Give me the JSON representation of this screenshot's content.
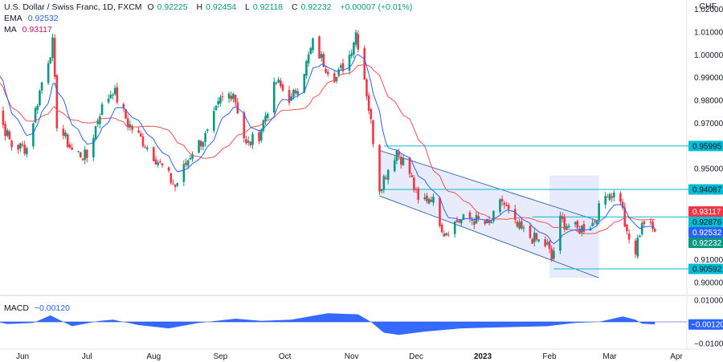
{
  "header": {
    "symbol": "U.S. Dollar / Swiss Franc, 1D, FXCM",
    "open_label": "O",
    "open": "0.92225",
    "high_label": "H",
    "high": "0.92454",
    "low_label": "L",
    "low": "0.92118",
    "close_label": "C",
    "close": "0.92232",
    "change": "+0.00007 (+0.01%)",
    "ema_label": "EMA",
    "ema_value": "0.92532",
    "ma_label": "MA",
    "ma_value": "0.93117",
    "unit": "CHF"
  },
  "macd_panel": {
    "label": "MACD",
    "value": "−0.00120"
  },
  "colors": {
    "up": "#089981",
    "down": "#f23645",
    "ema": "#2962ff",
    "ma": "#ef5350",
    "channel_fill": "#e6e9fb",
    "channel_line": "#3d6fb8",
    "level_line": "#00bcd4",
    "macd": "#2962ff",
    "ema_text": "#2962ff",
    "ma_text": "#c2185b"
  },
  "chart_data": [
    {
      "type": "candlestick",
      "title": "U.S. Dollar / Swiss Franc, 1D, FXCM",
      "y_axis_side": "right",
      "ylim": [
        0.895,
        1.022
      ],
      "y_ticks": [
        {
          "label": "1.02000",
          "value": 1.02
        },
        {
          "label": "1.01000",
          "value": 1.01
        },
        {
          "label": "1.00000",
          "value": 1.0
        },
        {
          "label": "0.99000",
          "value": 0.99
        },
        {
          "label": "0.98000",
          "value": 0.98
        },
        {
          "label": "0.97000",
          "value": 0.97
        },
        {
          "label": "0.95000",
          "value": 0.95
        },
        {
          "label": "0.91000",
          "value": 0.91
        },
        {
          "label": "0.90000",
          "value": 0.9
        }
      ],
      "price_labels": [
        {
          "label": "0.95995",
          "value": 0.95995,
          "bg": "#00bcd4",
          "fg": "#131722",
          "line": true
        },
        {
          "label": "0.94087",
          "value": 0.94087,
          "bg": "#00bcd4",
          "fg": "#131722",
          "line": true
        },
        {
          "label": "0.93117",
          "value": 0.93117,
          "bg": "#f23645",
          "fg": "#ffffff",
          "line": false
        },
        {
          "label": "0.92876",
          "value": 0.92876,
          "bg": "#00bcd4",
          "fg": "#131722",
          "line": true
        },
        {
          "label": "0.92532",
          "value": 0.92532,
          "bg": "#2962ff",
          "fg": "#ffffff",
          "line": false
        },
        {
          "label": "0.92232",
          "value": 0.92232,
          "bg": "#089981",
          "fg": "#ffffff",
          "line": false
        },
        {
          "label": "0.90592",
          "value": 0.90592,
          "bg": "#00bcd4",
          "fg": "#131722",
          "line": true
        }
      ],
      "x_ticks": [
        "Jun",
        "Jul",
        "Aug",
        "Sep",
        "Oct",
        "Nov",
        "Dec",
        "2023",
        "Feb",
        "Mar",
        "Apr"
      ],
      "x_tick_dates": [
        "2022-06-01",
        "2022-07-01",
        "2022-08-01",
        "2022-09-01",
        "2022-10-01",
        "2022-11-01",
        "2022-12-01",
        "2023-01-01",
        "2023-02-01",
        "2023-03-01",
        "2023-04-01"
      ],
      "x_bold": [
        "2023"
      ],
      "first_date": "2022-05-16",
      "last_date": "2023-03-22",
      "close_path": [
        {
          "d": "2022-05-16",
          "v": 1.004
        },
        {
          "d": "2022-05-20",
          "v": 0.976
        },
        {
          "d": "2022-05-27",
          "v": 0.96
        },
        {
          "d": "2022-06-03",
          "v": 0.959
        },
        {
          "d": "2022-06-10",
          "v": 0.988
        },
        {
          "d": "2022-06-15",
          "v": 1.005
        },
        {
          "d": "2022-06-17",
          "v": 0.97
        },
        {
          "d": "2022-06-24",
          "v": 0.958
        },
        {
          "d": "2022-07-01",
          "v": 0.955
        },
        {
          "d": "2022-07-07",
          "v": 0.975
        },
        {
          "d": "2022-07-13",
          "v": 0.985
        },
        {
          "d": "2022-07-20",
          "v": 0.97
        },
        {
          "d": "2022-07-27",
          "v": 0.962
        },
        {
          "d": "2022-08-04",
          "v": 0.952
        },
        {
          "d": "2022-08-11",
          "v": 0.942
        },
        {
          "d": "2022-08-19",
          "v": 0.958
        },
        {
          "d": "2022-08-26",
          "v": 0.965
        },
        {
          "d": "2022-09-01",
          "v": 0.98
        },
        {
          "d": "2022-09-07",
          "v": 0.984
        },
        {
          "d": "2022-09-13",
          "v": 0.96
        },
        {
          "d": "2022-09-19",
          "v": 0.965
        },
        {
          "d": "2022-09-27",
          "v": 0.988
        },
        {
          "d": "2022-10-04",
          "v": 0.98
        },
        {
          "d": "2022-10-11",
          "v": 0.996
        },
        {
          "d": "2022-10-14",
          "v": 1.005
        },
        {
          "d": "2022-10-20",
          "v": 0.995
        },
        {
          "d": "2022-10-25",
          "v": 0.99
        },
        {
          "d": "2022-10-31",
          "v": 1.0
        },
        {
          "d": "2022-11-03",
          "v": 1.01
        },
        {
          "d": "2022-11-07",
          "v": 0.99
        },
        {
          "d": "2022-11-10",
          "v": 0.97
        },
        {
          "d": "2022-11-14",
          "v": 0.942
        },
        {
          "d": "2022-11-18",
          "v": 0.95
        },
        {
          "d": "2022-11-22",
          "v": 0.958
        },
        {
          "d": "2022-11-28",
          "v": 0.948
        },
        {
          "d": "2022-12-02",
          "v": 0.935
        },
        {
          "d": "2022-12-08",
          "v": 0.938
        },
        {
          "d": "2022-12-14",
          "v": 0.922
        },
        {
          "d": "2022-12-20",
          "v": 0.927
        },
        {
          "d": "2022-12-27",
          "v": 0.928
        },
        {
          "d": "2023-01-04",
          "v": 0.925
        },
        {
          "d": "2023-01-10",
          "v": 0.936
        },
        {
          "d": "2023-01-16",
          "v": 0.925
        },
        {
          "d": "2023-01-23",
          "v": 0.92
        },
        {
          "d": "2023-01-31",
          "v": 0.916
        },
        {
          "d": "2023-02-02",
          "v": 0.91
        },
        {
          "d": "2023-02-06",
          "v": 0.927
        },
        {
          "d": "2023-02-14",
          "v": 0.923
        },
        {
          "d": "2023-02-21",
          "v": 0.926
        },
        {
          "d": "2023-02-28",
          "v": 0.94
        },
        {
          "d": "2023-03-06",
          "v": 0.937
        },
        {
          "d": "2023-03-09",
          "v": 0.92
        },
        {
          "d": "2023-03-13",
          "v": 0.913
        },
        {
          "d": "2023-03-16",
          "v": 0.927
        },
        {
          "d": "2023-03-22",
          "v": 0.9223
        }
      ],
      "overlays": [
        {
          "name": "EMA",
          "value": "0.92532",
          "color": "#2962ff"
        },
        {
          "name": "MA",
          "value": "0.93117",
          "color": "#ef5350"
        }
      ],
      "drawings": {
        "descending_channel": [
          {
            "d": "2022-11-14",
            "upper": 0.958,
            "lower": 0.938
          },
          {
            "d": "2023-02-24",
            "upper": 0.927,
            "lower": 0.902
          }
        ],
        "highlight_range": [
          "2023-02-01",
          "2023-02-24"
        ]
      }
    },
    {
      "type": "area",
      "name": "MACD",
      "value": "−0.00120",
      "ylim": [
        -0.0115,
        0.0115
      ],
      "y_ticks": [
        {
          "label": "0.01000",
          "value": 0.01
        },
        {
          "label": "−0.01000",
          "value": -0.01
        }
      ],
      "last_label": {
        "label": "−0.00120",
        "value": -0.0012,
        "bg": "#2962ff",
        "fg": "#ffffff"
      },
      "points": [
        {
          "d": "2022-05-16",
          "v": 0.001
        },
        {
          "d": "2022-05-25",
          "v": -0.001
        },
        {
          "d": "2022-06-06",
          "v": -0.0005
        },
        {
          "d": "2022-06-14",
          "v": 0.003
        },
        {
          "d": "2022-06-24",
          "v": -0.002
        },
        {
          "d": "2022-07-07",
          "v": 0.0005
        },
        {
          "d": "2022-07-13",
          "v": 0.001
        },
        {
          "d": "2022-07-25",
          "v": -0.0015
        },
        {
          "d": "2022-08-08",
          "v": -0.003
        },
        {
          "d": "2022-08-22",
          "v": -0.0005
        },
        {
          "d": "2022-09-08",
          "v": 0.0015
        },
        {
          "d": "2022-09-20",
          "v": 0.0005
        },
        {
          "d": "2022-10-04",
          "v": 0.001
        },
        {
          "d": "2022-10-21",
          "v": 0.004
        },
        {
          "d": "2022-11-04",
          "v": 0.0035
        },
        {
          "d": "2022-11-10",
          "v": 0.0
        },
        {
          "d": "2022-11-16",
          "v": -0.005
        },
        {
          "d": "2022-11-23",
          "v": -0.006
        },
        {
          "d": "2022-12-05",
          "v": -0.0045
        },
        {
          "d": "2022-12-22",
          "v": -0.003
        },
        {
          "d": "2023-01-10",
          "v": -0.0025
        },
        {
          "d": "2023-01-31",
          "v": -0.002
        },
        {
          "d": "2023-02-13",
          "v": -0.0005
        },
        {
          "d": "2023-02-24",
          "v": 0.0
        },
        {
          "d": "2023-03-07",
          "v": 0.0025
        },
        {
          "d": "2023-03-13",
          "v": 0.001
        },
        {
          "d": "2023-03-16",
          "v": -0.0008
        },
        {
          "d": "2023-03-22",
          "v": -0.0012
        }
      ]
    }
  ]
}
